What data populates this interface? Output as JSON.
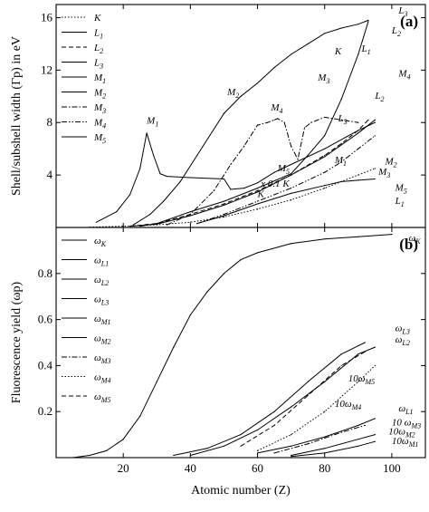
{
  "chart_data": [
    {
      "type": "line",
      "panel": "(a)",
      "ylabel": "Shell/subshell width (Γp) in eV",
      "xlim": [
        0,
        110
      ],
      "ylim": [
        0,
        17
      ],
      "xticks": [
        20,
        40,
        60,
        80,
        100
      ],
      "yticks": [
        4,
        8,
        12,
        16
      ],
      "legend": [
        "K",
        "L1",
        "L2",
        "L3",
        "M1",
        "M2",
        "M3",
        "M4",
        "M5"
      ],
      "legend_position": "top-left",
      "annotations": [
        "K",
        "L1",
        "L2",
        "L3",
        "M1",
        "M2",
        "M3",
        "M4",
        "M5",
        "M1",
        "M2",
        "M3",
        "M5",
        "L1",
        "x 0.1 K",
        "K",
        "L3",
        "L2",
        "M4"
      ],
      "series": [
        {
          "name": "K",
          "style": "dotted",
          "x": [
            10,
            20,
            30,
            40,
            50,
            60,
            70,
            80,
            90,
            95
          ],
          "y": [
            0.02,
            0.1,
            0.2,
            0.4,
            0.8,
            1.4,
            2.1,
            3.0,
            4.0,
            4.5
          ]
        },
        {
          "name": "L1",
          "style": "solid",
          "x": [
            12,
            18,
            22,
            25,
            27,
            29,
            31,
            33,
            40,
            50,
            52,
            56,
            60,
            65,
            70,
            80,
            90,
            95
          ],
          "y": [
            0.4,
            1.2,
            2.5,
            4.5,
            7.2,
            5.5,
            4.1,
            3.9,
            3.8,
            3.7,
            2.9,
            3.0,
            3.4,
            4.2,
            4.8,
            6.0,
            7.4,
            8.0
          ]
        },
        {
          "name": "L2",
          "style": "dashed",
          "x": [
            22,
            30,
            40,
            50,
            60,
            70,
            80,
            85,
            90,
            93
          ],
          "y": [
            0.1,
            0.3,
            1.0,
            1.8,
            2.8,
            4.0,
            5.5,
            6.4,
            7.4,
            8.2
          ]
        },
        {
          "name": "L3",
          "style": "solid",
          "x": [
            22,
            30,
            40,
            50,
            60,
            70,
            80,
            90,
            95
          ],
          "y": [
            0.1,
            0.25,
            0.9,
            1.7,
            2.7,
            4.0,
            5.4,
            7.2,
            8.2
          ]
        },
        {
          "name": "M1",
          "style": "solid",
          "x": [
            23,
            28,
            32,
            37,
            42,
            50,
            55,
            60,
            65,
            70,
            75,
            80,
            85,
            90,
            93
          ],
          "y": [
            0.2,
            1.0,
            2.0,
            3.5,
            5.5,
            8.7,
            10.0,
            11.0,
            12.2,
            13.2,
            14.0,
            14.8,
            15.2,
            15.5,
            15.8
          ]
        },
        {
          "name": "M2",
          "style": "solid",
          "x": [
            25,
            30,
            40,
            50,
            60,
            70,
            75,
            80,
            85,
            90,
            93
          ],
          "y": [
            0.1,
            0.3,
            1.2,
            2.0,
            3.0,
            4.1,
            5.5,
            7.0,
            9.8,
            13.2,
            15.7
          ]
        },
        {
          "name": "M3",
          "style": "dash-dot",
          "x": [
            33,
            40,
            47,
            52,
            56,
            60,
            63,
            65,
            66,
            68,
            70,
            72,
            74,
            76,
            80,
            85,
            90
          ],
          "y": [
            0.2,
            1.0,
            2.8,
            4.8,
            6.2,
            7.8,
            8.0,
            8.2,
            8.3,
            8.0,
            6.2,
            5.2,
            7.6,
            8.0,
            8.4,
            8.2,
            8.0
          ]
        },
        {
          "name": "M4",
          "style": "dash-dot-dot",
          "x": [
            42,
            50,
            60,
            70,
            80,
            85,
            90,
            95
          ],
          "y": [
            0.3,
            1.0,
            2.0,
            3.0,
            4.2,
            5.0,
            6.0,
            7.0
          ]
        },
        {
          "name": "M5",
          "style": "solid",
          "x": [
            42,
            50,
            60,
            70,
            80,
            85,
            90,
            95
          ],
          "y": [
            0.3,
            0.9,
            1.8,
            2.6,
            3.2,
            3.5,
            3.6,
            3.7
          ]
        }
      ]
    },
    {
      "type": "line",
      "panel": "(b)",
      "ylabel": "Fluorescence yield (ωp)",
      "xlabel": "Atomic number (Z)",
      "xlim": [
        0,
        110
      ],
      "ylim": [
        0,
        1.0
      ],
      "xticks": [
        20,
        40,
        60,
        80,
        100
      ],
      "yticks": [
        0.2,
        0.4,
        0.6,
        0.8
      ],
      "legend": [
        "ωK",
        "ωL1",
        "ωL2",
        "ωL3",
        "ωM1",
        "ωM2",
        "ωM3",
        "ωM4",
        "ωM5"
      ],
      "legend_position": "top-left",
      "annotations": [
        "ωK",
        "ωL3",
        "ωL2",
        "10ωM5",
        "10ωM4",
        "ωL1",
        "10 ωM3",
        "10ωM2",
        "10ωM1"
      ],
      "series": [
        {
          "name": "ωK",
          "style": "solid",
          "x": [
            5,
            10,
            15,
            20,
            25,
            30,
            35,
            40,
            45,
            50,
            55,
            60,
            70,
            80,
            90,
            100
          ],
          "y": [
            0.0,
            0.01,
            0.03,
            0.08,
            0.18,
            0.33,
            0.48,
            0.62,
            0.72,
            0.8,
            0.86,
            0.89,
            0.93,
            0.95,
            0.96,
            0.97
          ]
        },
        {
          "name": "ωL1",
          "style": "solid",
          "x": [
            60,
            70,
            80,
            90,
            95
          ],
          "y": [
            0.02,
            0.05,
            0.09,
            0.14,
            0.17
          ]
        },
        {
          "name": "ωL2",
          "style": "solid",
          "x": [
            40,
            50,
            60,
            70,
            80,
            90,
            95
          ],
          "y": [
            0.01,
            0.05,
            0.12,
            0.22,
            0.33,
            0.45,
            0.48
          ]
        },
        {
          "name": "ωL3",
          "style": "solid",
          "x": [
            35,
            45,
            55,
            65,
            75,
            85,
            92
          ],
          "y": [
            0.01,
            0.04,
            0.1,
            0.2,
            0.33,
            0.45,
            0.5
          ]
        },
        {
          "name": "ωM1",
          "style": "solid",
          "x": [
            70,
            80,
            90,
            95
          ],
          "y": [
            0.005,
            0.02,
            0.05,
            0.07
          ]
        },
        {
          "name": "ωM2",
          "style": "solid",
          "x": [
            70,
            80,
            90,
            95
          ],
          "y": [
            0.01,
            0.04,
            0.08,
            0.1
          ]
        },
        {
          "name": "ωM3",
          "style": "dash-dot",
          "x": [
            65,
            75,
            85,
            92
          ],
          "y": [
            0.02,
            0.06,
            0.11,
            0.14
          ]
        },
        {
          "name": "ωM4",
          "style": "dotted",
          "x": [
            60,
            70,
            80,
            90,
            95
          ],
          "y": [
            0.03,
            0.1,
            0.2,
            0.33,
            0.4
          ]
        },
        {
          "name": "ωM5",
          "style": "dashed",
          "x": [
            55,
            65,
            75,
            85,
            92
          ],
          "y": [
            0.05,
            0.14,
            0.27,
            0.4,
            0.46
          ]
        }
      ]
    }
  ]
}
